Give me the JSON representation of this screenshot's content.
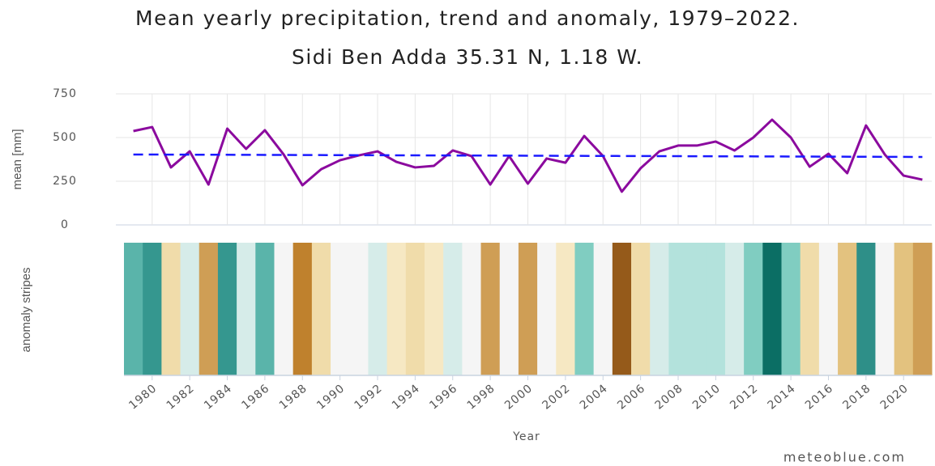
{
  "chart_data": {
    "type": "line",
    "title": "Mean yearly precipitation, trend and anomaly, 1979–2022.",
    "subtitle": "Sidi Ben Adda 35.31 N, 1.18 W.",
    "y_label": "mean [mm]",
    "stripes_label": "anomaly stripes",
    "x_label": "Year",
    "credit": "meteoblue.com",
    "x": [
      1979,
      1980,
      1981,
      1982,
      1983,
      1984,
      1985,
      1986,
      1987,
      1988,
      1989,
      1990,
      1991,
      1992,
      1993,
      1994,
      1995,
      1996,
      1997,
      1998,
      1999,
      2000,
      2001,
      2002,
      2003,
      2004,
      2005,
      2006,
      2007,
      2008,
      2009,
      2010,
      2011,
      2012,
      2013,
      2014,
      2015,
      2016,
      2017,
      2018,
      2019,
      2020,
      2021
    ],
    "series": [
      {
        "color": "#8b0a9e",
        "values": [
          537,
          560,
          329,
          421,
          231,
          551,
          435,
          542,
          403,
          227,
          319,
          370,
          398,
          421,
          361,
          329,
          338,
          426,
          394,
          231,
          394,
          236,
          380,
          356,
          509,
          394,
          190,
          324,
          421,
          454,
          454,
          477,
          426,
          500,
          602,
          500,
          333,
          407,
          296,
          569,
          403,
          282,
          259
        ]
      },
      {
        "color": "#1a1aff",
        "dashed": true,
        "x": [
          1979,
          2021
        ],
        "values": [
          403,
          389
        ]
      }
    ],
    "stripe_colors": [
      "#5ab4aa",
      "#35978f",
      "#f0dcaa",
      "#d6ece9",
      "#cf9e55",
      "#35978f",
      "#d6ece9",
      "#5ab4aa",
      "#f5f5f5",
      "#bf812d",
      "#f0dcaa",
      "#f5f5f5",
      "#f5f5f5",
      "#d6ece9",
      "#f6e8c3",
      "#f0dcaa",
      "#f6e8c3",
      "#d6ece9",
      "#f5f5f5",
      "#cf9e55",
      "#f5f5f5",
      "#cf9e55",
      "#f5f5f5",
      "#f6e8c3",
      "#80cdc1",
      "#f5f5f5",
      "#955a1a",
      "#f0dcaa",
      "#d6ece9",
      "#b3e2dc",
      "#b3e2dc",
      "#b3e2dc",
      "#d6ece9",
      "#80cdc1",
      "#0b6e64",
      "#80cdc1",
      "#f0dcaa",
      "#f5f5f5",
      "#e3c27f",
      "#2e8f88",
      "#f5f5f5",
      "#e3c27f",
      "#cf9e55"
    ],
    "xlim": [
      1978.5,
      2021.5
    ],
    "xticks": [
      1980,
      1982,
      1984,
      1986,
      1988,
      1990,
      1992,
      1994,
      1996,
      1998,
      2000,
      2002,
      2004,
      2006,
      2008,
      2010,
      2012,
      2014,
      2016,
      2018,
      2020
    ],
    "ylim": [
      0,
      750
    ],
    "yticks": [
      0,
      250,
      500,
      750
    ],
    "grid": true
  }
}
